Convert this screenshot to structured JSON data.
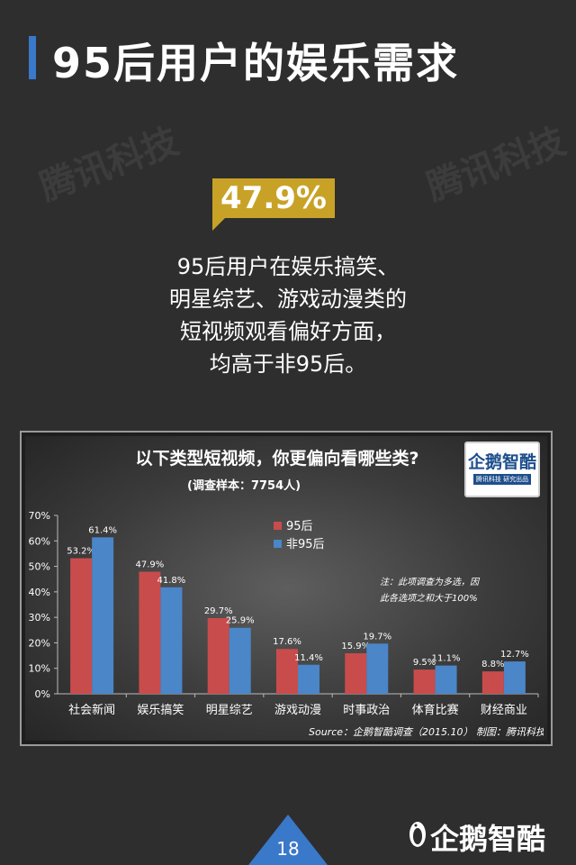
{
  "page": {
    "title": "95后用户的娱乐需求",
    "highlight_value": "47.9%",
    "summary_lines": [
      "95后用户在娱乐搞笑、",
      "明星综艺、游戏动漫类的",
      "短视频观看偏好方面，",
      "均高于非95后。"
    ],
    "watermark_text": "腾讯科技",
    "page_number": "18",
    "footer_brand": "企鹅智酷"
  },
  "brand_badge": {
    "logo": "企鹅智酷",
    "tag": "腾讯科技 研究出品"
  },
  "chart_data": {
    "type": "bar",
    "title": "以下类型短视频，你更偏向看哪些类?",
    "subtitle": "(调查样本：7754人)",
    "categories": [
      "社会新闻",
      "娱乐搞笑",
      "明星综艺",
      "游戏动漫",
      "时事政治",
      "体育比赛",
      "财经商业"
    ],
    "series": [
      {
        "name": "95后",
        "values": [
          53.2,
          47.9,
          29.7,
          17.6,
          15.9,
          9.5,
          8.8
        ],
        "labels": [
          "53.2%",
          "47.9%",
          "29.7%",
          "17.6%",
          "15.9%",
          "9.5%",
          "8.8%"
        ],
        "color": "#c94c4c"
      },
      {
        "name": "非95后",
        "values": [
          61.4,
          41.8,
          25.9,
          11.4,
          19.7,
          11.1,
          12.7
        ],
        "labels": [
          "61.4%",
          "41.8%",
          "25.9%",
          "11.4%",
          "19.7%",
          "11.1%",
          "12.7%"
        ],
        "color": "#4a86c8"
      }
    ],
    "ylim": [
      0,
      70
    ],
    "yticks": [
      "0%",
      "10%",
      "20%",
      "30%",
      "40%",
      "50%",
      "60%",
      "70%"
    ],
    "legend_position": "top-center",
    "note_lines": [
      "注：此项调查为多选，因",
      "此各选项之和大于100%"
    ],
    "source": "Source：企鹅智酷调查（2015.10）   制图：腾讯科技",
    "grid": false
  }
}
